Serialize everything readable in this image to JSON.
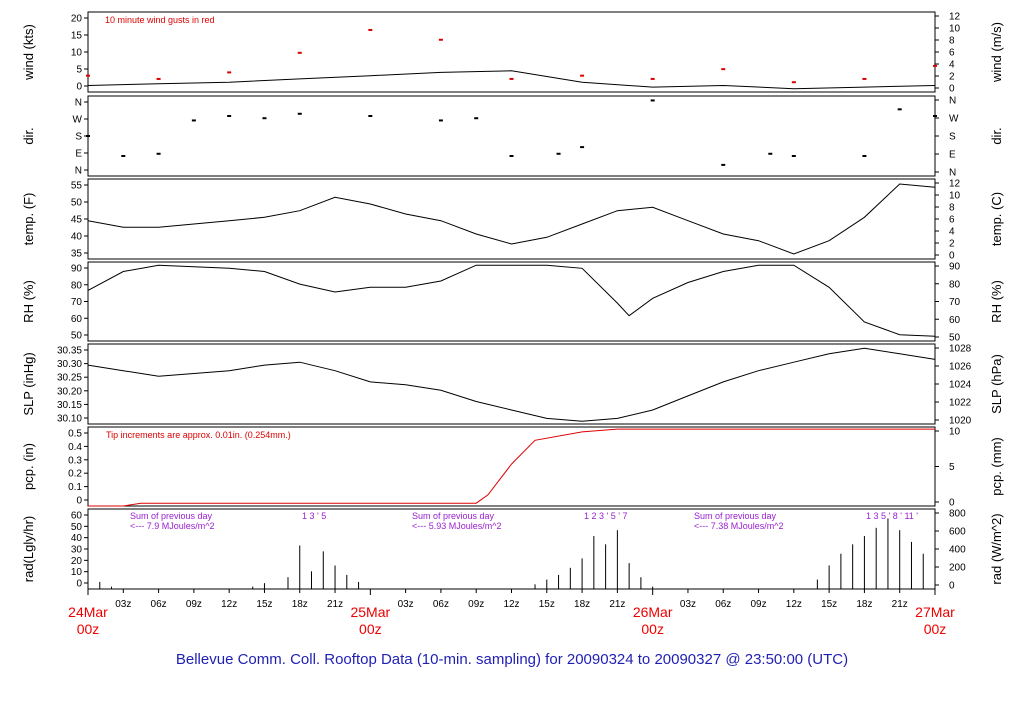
{
  "title": "Bellevue Comm. Coll. Rooftop Data (10-min. sampling) for 20090324  to  20090327 @ 23:50:00  (UTC)",
  "colors": {
    "title": "#1f1fb4",
    "date": "#ee0000",
    "red": "#dd0000",
    "purple": "#9a1fd0",
    "black": "#000000"
  },
  "chart_data": {
    "type": "line",
    "x_start": "2009-03-24 00:00Z",
    "x_end": "2009-03-27 00:00Z",
    "x_ticks": [
      "03z",
      "06z",
      "09z",
      "12z",
      "15z",
      "18z",
      "21z",
      "03z",
      "06z",
      "09z",
      "12z",
      "15z",
      "18z",
      "21z",
      "03z",
      "06z",
      "09z",
      "12z",
      "15z",
      "18z",
      "21z"
    ],
    "day_labels": [
      {
        "date": "24Mar",
        "time": "00z"
      },
      {
        "date": "25Mar",
        "time": "00z"
      },
      {
        "date": "26Mar",
        "time": "00z"
      },
      {
        "date": "27Mar",
        "time": "00z"
      }
    ],
    "panels": [
      {
        "id": "wind",
        "left_label": "wind (kts)",
        "right_label": "wind (m/s)",
        "left_ticks": [
          "0",
          "5",
          "10",
          "15",
          "20"
        ],
        "left_range": [
          0,
          24.5
        ],
        "right_ticks": [
          "0",
          "2",
          "4",
          "6",
          "8",
          "10",
          "12"
        ],
        "annotation": "10  minute wind gusts in red",
        "series": [
          {
            "style": "line",
            "color": "black",
            "hours": [
              0,
              6,
              12,
              18,
              24,
              30,
              36,
              42,
              48,
              54,
              60,
              66,
              72
            ],
            "values": [
              2,
              2.5,
              3,
              4,
              5,
              6,
              6.5,
              3,
              1.5,
              2,
              1,
              1.5,
              2
            ]
          },
          {
            "style": "dots",
            "color": "red",
            "hours": [
              0,
              6,
              12,
              18,
              24,
              30,
              36,
              42,
              48,
              54,
              60,
              66,
              72
            ],
            "values": [
              5,
              4,
              6,
              12,
              19,
              16,
              4,
              5,
              4,
              7,
              3,
              4,
              8
            ]
          }
        ]
      },
      {
        "id": "dir",
        "left_label": "dir.",
        "right_label": "dir.",
        "left_ticks": [
          "N",
          "E",
          "S",
          "W",
          "N"
        ],
        "left_range": [
          0,
          360
        ],
        "right_ticks": [
          "N",
          "E",
          "S",
          "W",
          "N"
        ],
        "series": [
          {
            "style": "dots",
            "color": "black",
            "hours": [
              0,
              3,
              6,
              9,
              12,
              15,
              18,
              24,
              30,
              33,
              36,
              40,
              42,
              48,
              54,
              58,
              60,
              66,
              69,
              72
            ],
            "values": [
              180,
              90,
              100,
              250,
              270,
              260,
              280,
              270,
              250,
              260,
              90,
              100,
              130,
              340,
              50,
              100,
              90,
              90,
              300,
              270
            ]
          }
        ]
      },
      {
        "id": "temp",
        "left_label": "temp. (F)",
        "right_label": "temp. (C)",
        "left_ticks": [
          "35",
          "40",
          "45",
          "50",
          "55"
        ],
        "left_range": [
          31.5,
          55.5
        ],
        "right_ticks": [
          "0",
          "2",
          "4",
          "6",
          "8",
          "10",
          "12"
        ],
        "series": [
          {
            "style": "line",
            "color": "black",
            "hours": [
              0,
              3,
              6,
              9,
              12,
              15,
              18,
              21,
              24,
              27,
              30,
              33,
              36,
              39,
              42,
              45,
              48,
              51,
              54,
              57,
              60,
              63,
              66,
              69,
              72
            ],
            "values": [
              43,
              41,
              41,
              42,
              43,
              44,
              46,
              50,
              48,
              45,
              43,
              39,
              36,
              38,
              42,
              46,
              47,
              43,
              39,
              37,
              33,
              37,
              44,
              54,
              53
            ]
          }
        ]
      },
      {
        "id": "rh",
        "left_label": "RH (%)",
        "right_label": "RH (%)",
        "left_ticks": [
          "50",
          "60",
          "70",
          "80",
          "90"
        ],
        "left_range": [
          46,
          96
        ],
        "right_ticks": [
          "50",
          "60",
          "70",
          "80",
          "90"
        ],
        "series": [
          {
            "style": "line",
            "color": "black",
            "hours": [
              0,
              3,
              6,
              9,
              12,
              15,
              18,
              21,
              24,
              27,
              30,
              33,
              36,
              39,
              42,
              45,
              46,
              48,
              51,
              54,
              57,
              60,
              63,
              66,
              69,
              72
            ],
            "values": [
              78,
              90,
              94,
              93,
              92,
              90,
              82,
              77,
              80,
              80,
              84,
              94,
              94,
              94,
              92,
              70,
              62,
              73,
              83,
              90,
              94,
              94,
              80,
              58,
              50,
              49
            ]
          }
        ]
      },
      {
        "id": "slp",
        "left_label": "SLP (inHg)",
        "right_label": "SLP (hPa)",
        "left_ticks": [
          "30.10",
          "30.15",
          "30.20",
          "30.25",
          "30.30",
          "30.35"
        ],
        "left_range": [
          30.07,
          30.355
        ],
        "right_ticks": [
          "1020",
          "1022",
          "1024",
          "1026",
          "1028"
        ],
        "series": [
          {
            "style": "line",
            "color": "black",
            "hours": [
              0,
              3,
              6,
              9,
              12,
              15,
              18,
              21,
              24,
              27,
              30,
              33,
              36,
              39,
              42,
              45,
              48,
              51,
              54,
              57,
              60,
              63,
              66,
              69,
              72
            ],
            "values": [
              30.28,
              30.26,
              30.24,
              30.25,
              30.26,
              30.28,
              30.29,
              30.26,
              30.22,
              30.21,
              30.19,
              30.15,
              30.12,
              30.09,
              30.08,
              30.09,
              30.12,
              30.17,
              30.22,
              30.26,
              30.29,
              30.32,
              30.34,
              30.32,
              30.3
            ]
          }
        ]
      },
      {
        "id": "pcp",
        "left_label": "pcp. (in)",
        "right_label": "pcp. (mm)",
        "left_ticks": [
          "0",
          "0.1",
          "0.2",
          "0.3",
          "0.4",
          "0.5"
        ],
        "left_range": [
          0,
          0.565
        ],
        "right_ticks": [
          "0",
          "5",
          "10"
        ],
        "annotation": "Tip increments are approx. 0.01in. (0.254mm.)",
        "series": [
          {
            "style": "line",
            "color": "red",
            "hours": [
              0,
              3,
              4.5,
              24,
              33,
              34,
              36,
              38,
              42,
              45,
              48,
              72
            ],
            "values": [
              0,
              0,
              0.02,
              0.02,
              0.02,
              0.08,
              0.3,
              0.47,
              0.53,
              0.55,
              0.55,
              0.55
            ]
          }
        ]
      },
      {
        "id": "rad",
        "left_label": "rad(Lgly/hr)",
        "right_label": "rad (W/m^2)",
        "left_ticks": [
          "0",
          "10",
          "20",
          "30",
          "40",
          "50",
          "60"
        ],
        "left_range": [
          0,
          68
        ],
        "right_ticks": [
          "0",
          "200",
          "400",
          "600",
          "800"
        ],
        "daily_notes": [
          {
            "line1": "Sum of previous day",
            "line2": "<--- 7.9 MJoules/m^2",
            "ticks": "1     3   '   5"
          },
          {
            "line1": "Sum of previous day",
            "line2": "<--- 5.93 MJoules/m^2",
            "ticks": "1   2     3   '   5   '   7"
          },
          {
            "line1": "Sum of previous day",
            "line2": "<--- 7.38 MJoules/m^2",
            "ticks": "1    3   5   '   8   '  11   '"
          }
        ],
        "series": [
          {
            "style": "bars",
            "color": "black",
            "hours": [
              0,
              1,
              2,
              14,
              15,
              17,
              18,
              19,
              20,
              21,
              22,
              23,
              24,
              38,
              39,
              40,
              41,
              42,
              43,
              44,
              45,
              46,
              47,
              48,
              62,
              63,
              64,
              65,
              66,
              67,
              68,
              69,
              70,
              71,
              72
            ],
            "values": [
              8,
              6,
              2,
              2,
              5,
              10,
              37,
              15,
              32,
              20,
              12,
              6,
              0,
              4,
              8,
              12,
              18,
              26,
              45,
              38,
              50,
              22,
              10,
              2,
              8,
              20,
              30,
              38,
              45,
              52,
              60,
              50,
              40,
              30,
              25
            ]
          }
        ]
      }
    ]
  }
}
